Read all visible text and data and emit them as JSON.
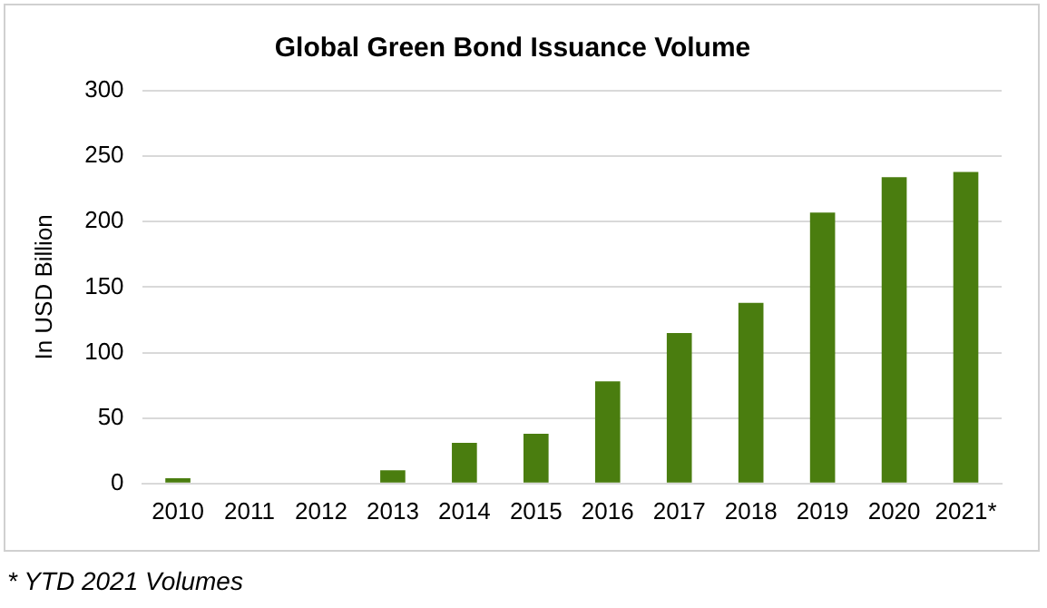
{
  "chart_data": {
    "type": "bar",
    "title": "Global Green Bond Issuance Volume",
    "ylabel": "In USD Billion",
    "categories": [
      "2010",
      "2011",
      "2012",
      "2013",
      "2014",
      "2015",
      "2016",
      "2017",
      "2018",
      "2019",
      "2020",
      "2021*"
    ],
    "values": [
      4,
      0,
      0,
      10,
      31,
      38,
      78,
      115,
      138,
      207,
      234,
      238
    ],
    "color": "#4a7d0f",
    "ylim": [
      0,
      300
    ],
    "yticks": [
      0,
      50,
      100,
      150,
      200,
      250,
      300
    ],
    "grid": "y",
    "legend": false,
    "annotations": [
      "* YTD 2021 Volumes"
    ]
  }
}
